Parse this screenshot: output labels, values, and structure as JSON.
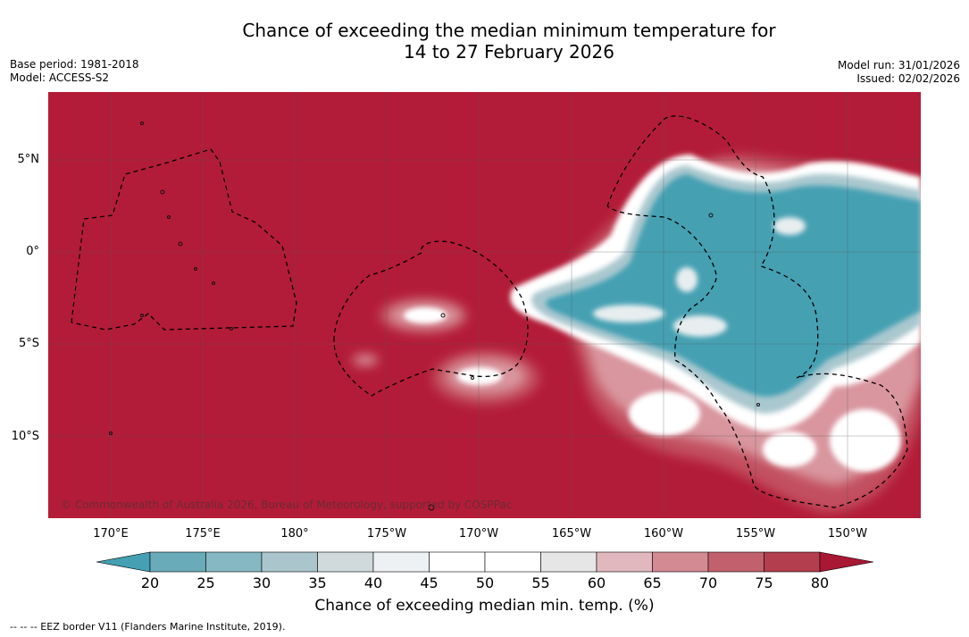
{
  "title": {
    "line1": "Chance of exceeding the median minimum temperature for",
    "line2": "14 to 27 February 2026"
  },
  "meta": {
    "base_period": "Base period: 1981-2018",
    "model": "Model: ACCESS-S2",
    "model_run": "Model run: 31/01/2026",
    "issued": "Issued: 02/02/2026"
  },
  "map": {
    "copyright": "© Commonwealth of Australia 2026, Bureau of Meteorology, supported by COSPPac",
    "lon_ticks": [
      "170°E",
      "175°E",
      "180°",
      "175°W",
      "170°W",
      "165°W",
      "160°W",
      "155°W",
      "150°W"
    ],
    "lat_ticks": [
      "5°N",
      "0°",
      "5°S",
      "10°S"
    ],
    "colors": {
      "background": "#b31c38",
      "cool_strong": "#44a0b2",
      "cool_light": "#aac8cf",
      "neutral": "#ffffff",
      "warm_light": "#d9969f",
      "warm_mid": "#c2505f"
    }
  },
  "colorbar": {
    "title": "Chance of exceeding median min. temp. (%)",
    "labels": [
      "20",
      "25",
      "30",
      "35",
      "40",
      "45",
      "50",
      "55",
      "60",
      "65",
      "70",
      "75",
      "80"
    ],
    "colors": [
      "#44a0b2",
      "#6aabb9",
      "#86b8c3",
      "#aac6cc",
      "#d0d9db",
      "#edf1f3",
      "#ffffff",
      "#ffffff",
      "#e6e6e6",
      "#e0b8bd",
      "#d48a93",
      "#c2606d",
      "#b33e4e",
      "#a81733"
    ]
  },
  "footnote": "--  --  -- EEZ border V11 (Flanders Marine Institute, 2019)."
}
